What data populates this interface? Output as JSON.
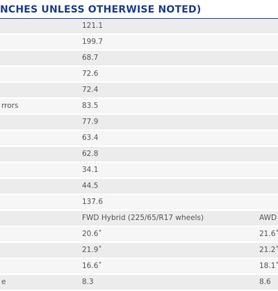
{
  "header": {
    "title": "NCHES UNLESS OTHERWISE NOTED)"
  },
  "table": {
    "rows": [
      {
        "value": "121.1"
      },
      {
        "value": "199.7"
      },
      {
        "value": "68.7"
      },
      {
        "value": "72.6"
      },
      {
        "value": "72.4"
      },
      {
        "label": "rrors",
        "value": "83.5"
      },
      {
        "value": "77.9"
      },
      {
        "value": "63.4"
      },
      {
        "value": "62.8"
      },
      {
        "value": "34.1"
      },
      {
        "value": "44.5"
      },
      {
        "value": "137.6"
      },
      {
        "value": "FWD Hybrid (225/65/R17 wheels)",
        "extra": "AWD"
      },
      {
        "value": "20.6˚",
        "extra": "21.6˚"
      },
      {
        "value": "21.9˚",
        "extra": "21.2˚"
      },
      {
        "value": "16.6˚",
        "extra": "18.1˚"
      },
      {
        "label": "e",
        "value": "8.3",
        "extra": "8.6"
      }
    ]
  }
}
